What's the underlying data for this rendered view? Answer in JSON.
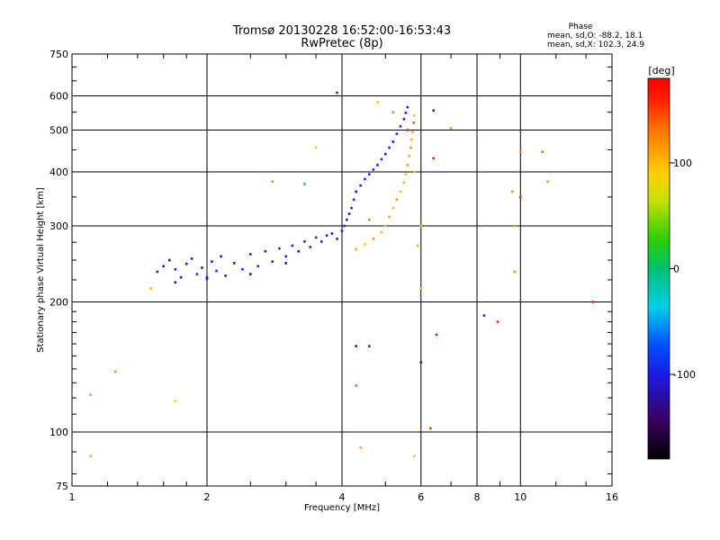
{
  "chart_data": {
    "type": "scatter",
    "title": "Tromsø 20130228 16:52:00-16:53:43",
    "subtitle": "RwPretec (8p)",
    "xlabel": "Frequency [MHz]",
    "ylabel": "Stationary phase Virtual Height [km]",
    "x_scale": "log",
    "y_scale": "log",
    "xlim": [
      1,
      16
    ],
    "ylim": [
      75,
      750
    ],
    "x_ticks": [
      "1",
      "2",
      "4",
      "6",
      "8",
      "10",
      "16"
    ],
    "y_ticks": [
      "75",
      "100",
      "200",
      "300",
      "400",
      "500",
      "600",
      "750"
    ],
    "grid": true,
    "stats": {
      "heading": "Phase",
      "line_o": "mean, sd,O: -88.2, 18.1",
      "line_x": "mean, sd,X: 102.3, 24.9"
    },
    "colorbar": {
      "label": "[deg]",
      "ticks": [
        "100",
        "0",
        "-100"
      ],
      "range": [
        -180,
        180
      ]
    },
    "series": [
      {
        "mode": "O",
        "points": [
          [
            1.55,
            235,
            -100
          ],
          [
            1.6,
            242,
            -95
          ],
          [
            1.65,
            250,
            -110
          ],
          [
            1.7,
            238,
            -90
          ],
          [
            1.75,
            228,
            -105
          ],
          [
            1.8,
            245,
            -98
          ],
          [
            1.85,
            252,
            -102
          ],
          [
            1.9,
            232,
            -92
          ],
          [
            1.95,
            240,
            -108
          ],
          [
            2.0,
            226,
            -95
          ],
          [
            2.05,
            248,
            -100
          ],
          [
            2.1,
            236,
            -90
          ],
          [
            2.15,
            255,
            -112
          ],
          [
            2.2,
            230,
            -96
          ],
          [
            2.3,
            246,
            -104
          ],
          [
            2.4,
            238,
            -88
          ],
          [
            2.5,
            258,
            -100
          ],
          [
            2.6,
            242,
            -94
          ],
          [
            2.7,
            262,
            -106
          ],
          [
            2.8,
            248,
            -98
          ],
          [
            2.9,
            266,
            -92
          ],
          [
            3.0,
            255,
            -102
          ],
          [
            3.1,
            270,
            -96
          ],
          [
            3.2,
            262,
            -108
          ],
          [
            3.3,
            276,
            -90
          ],
          [
            3.4,
            268,
            -100
          ],
          [
            3.5,
            282,
            -95
          ],
          [
            3.6,
            276,
            -104
          ],
          [
            3.7,
            285,
            -92
          ],
          [
            3.8,
            288,
            -98
          ],
          [
            3.9,
            280,
            -100
          ],
          [
            4.0,
            292,
            -96
          ],
          [
            4.05,
            300,
            -88
          ],
          [
            4.1,
            310,
            -94
          ],
          [
            4.15,
            320,
            -100
          ],
          [
            4.2,
            330,
            -92
          ],
          [
            4.25,
            345,
            -98
          ],
          [
            4.3,
            360,
            -102
          ],
          [
            4.4,
            372,
            -90
          ],
          [
            4.5,
            385,
            -96
          ],
          [
            4.6,
            395,
            -104
          ],
          [
            4.7,
            405,
            -92
          ],
          [
            4.8,
            415,
            -100
          ],
          [
            4.9,
            428,
            -94
          ],
          [
            5.0,
            440,
            -98
          ],
          [
            5.1,
            455,
            -90
          ],
          [
            5.2,
            470,
            -102
          ],
          [
            5.3,
            490,
            -96
          ],
          [
            5.4,
            510,
            -88
          ],
          [
            5.5,
            530,
            -100
          ],
          [
            5.55,
            548,
            -94
          ],
          [
            5.6,
            565,
            -98
          ],
          [
            1.7,
            222,
            -115
          ],
          [
            2.0,
            228,
            -110
          ],
          [
            2.5,
            232,
            -108
          ],
          [
            3.0,
            246,
            -112
          ]
        ]
      },
      {
        "mode": "X",
        "points": [
          [
            4.3,
            265,
            110
          ],
          [
            4.5,
            272,
            95
          ],
          [
            4.7,
            280,
            120
          ],
          [
            4.9,
            290,
            105
          ],
          [
            5.0,
            300,
            98
          ],
          [
            5.1,
            315,
            112
          ],
          [
            5.2,
            330,
            102
          ],
          [
            5.3,
            345,
            118
          ],
          [
            5.4,
            360,
            100
          ],
          [
            5.5,
            378,
            108
          ],
          [
            5.55,
            395,
            96
          ],
          [
            5.6,
            415,
            114
          ],
          [
            5.65,
            435,
            104
          ],
          [
            5.7,
            455,
            122
          ],
          [
            5.72,
            475,
            100
          ],
          [
            5.75,
            495,
            110
          ],
          [
            5.78,
            520,
            140
          ],
          [
            5.6,
            500,
            160
          ],
          [
            5.8,
            540,
            95
          ],
          [
            4.6,
            310,
            130
          ]
        ]
      },
      {
        "mode": "scattered",
        "points": [
          [
            1.1,
            88,
            100
          ],
          [
            1.1,
            122,
            110
          ],
          [
            1.25,
            138,
            115
          ],
          [
            1.5,
            215,
            105
          ],
          [
            1.7,
            118,
            90
          ],
          [
            3.3,
            375,
            -20
          ],
          [
            3.5,
            455,
            90
          ],
          [
            2.8,
            380,
            40
          ],
          [
            4.4,
            92,
            110
          ],
          [
            4.3,
            158,
            -100
          ],
          [
            4.3,
            128,
            20
          ],
          [
            4.6,
            158,
            -95
          ],
          [
            4.8,
            580,
            100
          ],
          [
            5.2,
            550,
            120
          ],
          [
            6.0,
            145,
            -100
          ],
          [
            6.0,
            300,
            100
          ],
          [
            6.0,
            215,
            60
          ],
          [
            6.3,
            102,
            150
          ],
          [
            6.4,
            430,
            160
          ],
          [
            6.4,
            555,
            -105
          ],
          [
            6.5,
            168,
            170
          ],
          [
            7.0,
            505,
            50
          ],
          [
            8.3,
            186,
            -90
          ],
          [
            8.9,
            180,
            160
          ],
          [
            9.6,
            360,
            120
          ],
          [
            9.7,
            235,
            120
          ],
          [
            9.7,
            300,
            110
          ],
          [
            10.0,
            445,
            120
          ],
          [
            10.0,
            350,
            160
          ],
          [
            11.2,
            445,
            140
          ],
          [
            11.5,
            380,
            110
          ],
          [
            14.5,
            200,
            160
          ],
          [
            5.8,
            88,
            70
          ],
          [
            3.9,
            610,
            -95
          ],
          [
            5.8,
            400,
            60
          ],
          [
            5.9,
            270,
            50
          ]
        ]
      }
    ]
  }
}
